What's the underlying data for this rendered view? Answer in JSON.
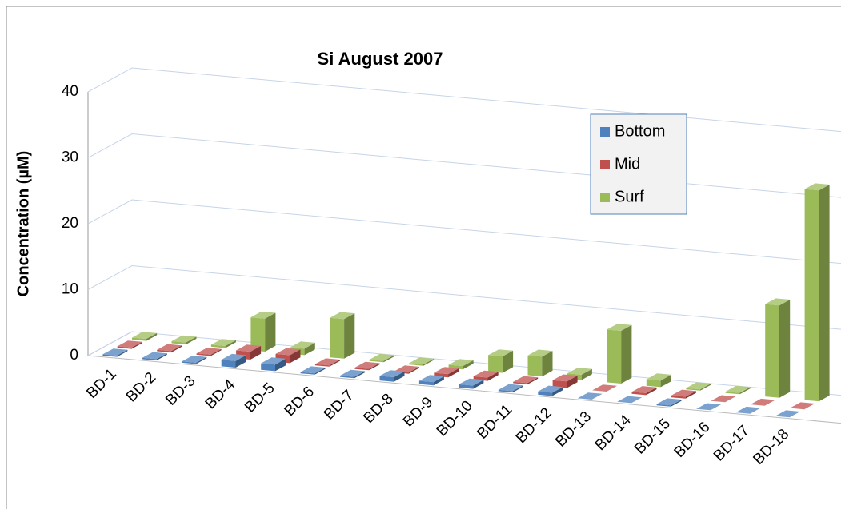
{
  "chart_data": {
    "type": "bar3d",
    "title": "Si  August 2007",
    "y_label": "Concentration (µM)",
    "categories": [
      "BD-1",
      "BD-2",
      "BD-3",
      "BD-4",
      "BD-5",
      "BD-6",
      "BD-7",
      "BD-8",
      "BD-9",
      "BD-10",
      "BD-11",
      "BD-12",
      "BD-13",
      "BD-14",
      "BD-15",
      "BD-16",
      "BD-17",
      "BD-18"
    ],
    "series": [
      {
        "name": "Bottom",
        "color": "#4f81bd",
        "values": [
          0.2,
          0.2,
          0.2,
          1,
          1,
          0.2,
          0.2,
          0.7,
          0.5,
          0.5,
          0.2,
          0.5,
          0,
          0,
          0.2,
          0,
          0,
          0
        ]
      },
      {
        "name": "Mid",
        "color": "#c0504d",
        "values": [
          0.2,
          0.2,
          0.2,
          1.2,
          1.2,
          0.2,
          0.2,
          0.2,
          0.5,
          0.5,
          0.2,
          1,
          0,
          0.3,
          0.3,
          0,
          0,
          0
        ]
      },
      {
        "name": "Surf",
        "color": "#9bbb59",
        "values": [
          0.3,
          0.3,
          0.3,
          5,
          1,
          6,
          0.2,
          0.2,
          0.5,
          2.5,
          3,
          0.8,
          8,
          1,
          0.2,
          0.2,
          14,
          32
        ]
      }
    ],
    "ylim": [
      0,
      40
    ],
    "yticks": [
      0,
      10,
      20,
      30,
      40
    ],
    "grid": true,
    "legend": "upper right"
  }
}
